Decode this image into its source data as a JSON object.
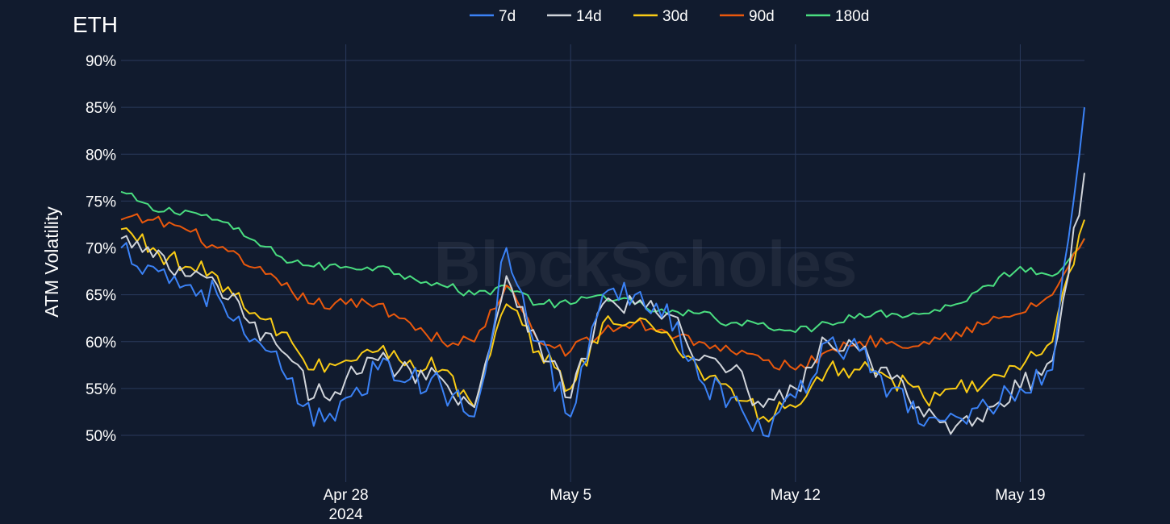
{
  "chart_data": {
    "type": "line",
    "title": "ETH",
    "watermark": "BlockScholes",
    "xlabel": "",
    "ylabel": "ATM Volatility",
    "x_ticks": [
      {
        "day": 28,
        "label": "Apr 28",
        "sublabel": "2024"
      },
      {
        "day": 35,
        "label": "May 5",
        "sublabel": ""
      },
      {
        "day": 42,
        "label": "May 12",
        "sublabel": ""
      },
      {
        "day": 49,
        "label": "May 19",
        "sublabel": ""
      }
    ],
    "y_ticks": [
      {
        "value": 50,
        "label": "50%"
      },
      {
        "value": 55,
        "label": "55%"
      },
      {
        "value": 60,
        "label": "60%"
      },
      {
        "value": 65,
        "label": "65%"
      },
      {
        "value": 70,
        "label": "70%"
      },
      {
        "value": 75,
        "label": "75%"
      },
      {
        "value": 80,
        "label": "80%"
      },
      {
        "value": 85,
        "label": "85%"
      },
      {
        "value": 90,
        "label": "90%"
      }
    ],
    "xlim": [
      "Apr 21 2024",
      "May 21 2024"
    ],
    "ylim": [
      45,
      93
    ],
    "grid": true,
    "legend_position": "top-center",
    "x_dates": [
      "Apr 21",
      "Apr 22",
      "Apr 23",
      "Apr 24",
      "Apr 25",
      "Apr 26",
      "Apr 27",
      "Apr 28",
      "Apr 29",
      "Apr 30",
      "May 1",
      "May 2",
      "May 3",
      "May 4",
      "May 5",
      "May 6",
      "May 7",
      "May 8",
      "May 9",
      "May 10",
      "May 11",
      "May 12",
      "May 13",
      "May 14",
      "May 15",
      "May 16",
      "May 17",
      "May 18",
      "May 19",
      "May 20",
      "May 21"
    ],
    "x_days": [
      21,
      22,
      23,
      24,
      25,
      26,
      27,
      28,
      29,
      30,
      31,
      32,
      33,
      34,
      35,
      36,
      37,
      38,
      39,
      40,
      41,
      42,
      43,
      44,
      45,
      46,
      47,
      48,
      49,
      50,
      51
    ],
    "series": [
      {
        "name": "7d",
        "color": "#3b82f6",
        "values": [
          70,
          68,
          66,
          65,
          60,
          57,
          51,
          54,
          57,
          56,
          55,
          52,
          70,
          60,
          52,
          65,
          65,
          64,
          56,
          54,
          50,
          54,
          60,
          59,
          55,
          51,
          52,
          53,
          55,
          57,
          85
        ]
      },
      {
        "name": "14d",
        "color": "#d1d5db",
        "values": [
          71,
          69,
          67,
          66,
          62,
          59,
          54,
          56,
          58,
          57,
          56,
          53,
          67,
          60,
          54,
          64,
          64,
          63,
          58,
          57,
          53,
          55,
          60,
          59,
          56,
          52,
          51,
          53,
          55,
          58,
          78
        ]
      },
      {
        "name": "30d",
        "color": "#facc15",
        "values": [
          72,
          70,
          68,
          67,
          63,
          61,
          57,
          58,
          59,
          58,
          57,
          53,
          64,
          59,
          55,
          62,
          62,
          61,
          57,
          55,
          52,
          53,
          57,
          57,
          56,
          54,
          55,
          56,
          57,
          60,
          73
        ]
      },
      {
        "name": "90d",
        "color": "#ea580c",
        "values": [
          73,
          73,
          72,
          70,
          68,
          66,
          64,
          64,
          64,
          62,
          60,
          60,
          66,
          60,
          59,
          61,
          62,
          61,
          60,
          59,
          58,
          57,
          59,
          60,
          60,
          60,
          61,
          62,
          63,
          65,
          71
        ]
      },
      {
        "name": "180d",
        "color": "#4ade80",
        "values": [
          76,
          74,
          74,
          73,
          71,
          69,
          68,
          68,
          68,
          67,
          66,
          65,
          66,
          64,
          64,
          65,
          64,
          63,
          63,
          62,
          62,
          61,
          62,
          63,
          63,
          63,
          64,
          66,
          68,
          67,
          71
        ]
      }
    ]
  }
}
